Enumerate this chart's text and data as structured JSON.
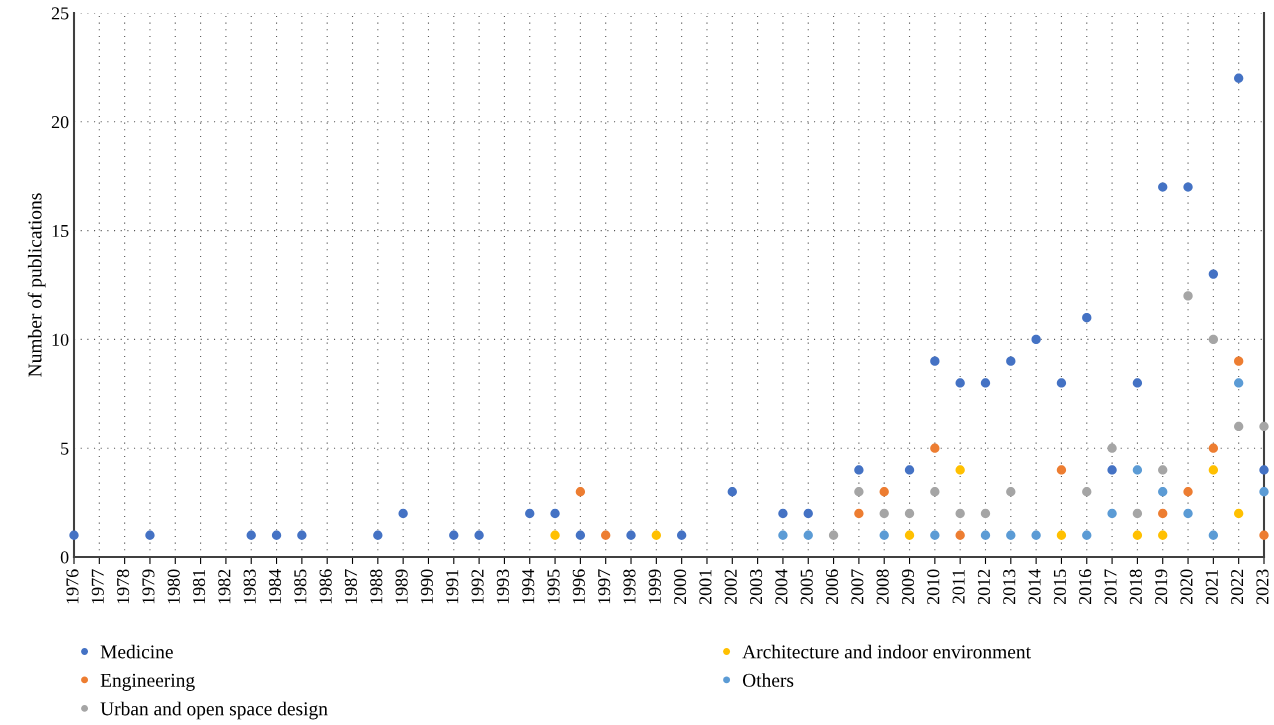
{
  "chart_data": {
    "type": "scatter",
    "ylabel": "Number of publications",
    "categories": [
      "1976",
      "1977",
      "1978",
      "1979",
      "1980",
      "1981",
      "1982",
      "1983",
      "1984",
      "1985",
      "1986",
      "1987",
      "1988",
      "1989",
      "1990",
      "1991",
      "1992",
      "1993",
      "1994",
      "1995",
      "1996",
      "1997",
      "1998",
      "1999",
      "2000",
      "2001",
      "2002",
      "2003",
      "2004",
      "2005",
      "2006",
      "2007",
      "2008",
      "2009",
      "2010",
      "2011",
      "2012",
      "2013",
      "2014",
      "2015",
      "2016",
      "2017",
      "2018",
      "2019",
      "2020",
      "2021",
      "2022",
      "2023"
    ],
    "series": [
      {
        "name": "Medicine",
        "color": "#4472c4",
        "values": [
          1,
          null,
          null,
          1,
          null,
          null,
          null,
          1,
          1,
          1,
          null,
          null,
          1,
          2,
          null,
          1,
          1,
          null,
          2,
          2,
          1,
          null,
          1,
          null,
          1,
          null,
          3,
          null,
          2,
          2,
          null,
          4,
          null,
          4,
          9,
          8,
          8,
          9,
          10,
          8,
          11,
          4,
          8,
          17,
          17,
          13,
          22,
          4
        ]
      },
      {
        "name": "Engineering",
        "color": "#ed7d31",
        "values": [
          null,
          null,
          null,
          null,
          null,
          null,
          null,
          null,
          null,
          null,
          null,
          null,
          null,
          null,
          null,
          null,
          null,
          null,
          null,
          null,
          3,
          1,
          null,
          null,
          null,
          null,
          null,
          null,
          null,
          null,
          null,
          2,
          3,
          null,
          5,
          1,
          null,
          null,
          null,
          4,
          null,
          null,
          null,
          2,
          3,
          5,
          9,
          1
        ]
      },
      {
        "name": "Urban and open space design",
        "color": "#a5a5a5",
        "values": [
          null,
          null,
          null,
          null,
          null,
          null,
          null,
          null,
          null,
          null,
          null,
          null,
          null,
          null,
          null,
          null,
          null,
          null,
          null,
          null,
          null,
          null,
          null,
          null,
          null,
          null,
          null,
          null,
          null,
          null,
          1,
          3,
          2,
          2,
          3,
          2,
          2,
          3,
          null,
          null,
          3,
          5,
          2,
          4,
          12,
          10,
          6,
          6
        ]
      },
      {
        "name": "Architecture and indoor environment",
        "color": "#ffc000",
        "values": [
          null,
          null,
          null,
          null,
          null,
          null,
          null,
          null,
          null,
          null,
          null,
          null,
          null,
          null,
          null,
          null,
          null,
          null,
          null,
          1,
          null,
          null,
          null,
          1,
          null,
          null,
          null,
          null,
          null,
          null,
          null,
          null,
          null,
          1,
          null,
          4,
          null,
          null,
          null,
          1,
          null,
          null,
          1,
          1,
          null,
          4,
          2,
          null
        ]
      },
      {
        "name": "Others",
        "color": "#5b9bd5",
        "values": [
          null,
          null,
          null,
          null,
          null,
          null,
          null,
          null,
          null,
          null,
          null,
          null,
          null,
          null,
          null,
          null,
          null,
          null,
          null,
          null,
          null,
          null,
          null,
          null,
          null,
          null,
          null,
          null,
          1,
          1,
          null,
          null,
          1,
          null,
          1,
          null,
          1,
          1,
          1,
          null,
          1,
          2,
          4,
          3,
          2,
          1,
          8,
          3
        ]
      }
    ],
    "ylim": [
      0,
      25
    ],
    "yticks": [
      0,
      5,
      10,
      15,
      20,
      25
    ],
    "grid": true,
    "marker": "circle",
    "legend": "bottom"
  }
}
